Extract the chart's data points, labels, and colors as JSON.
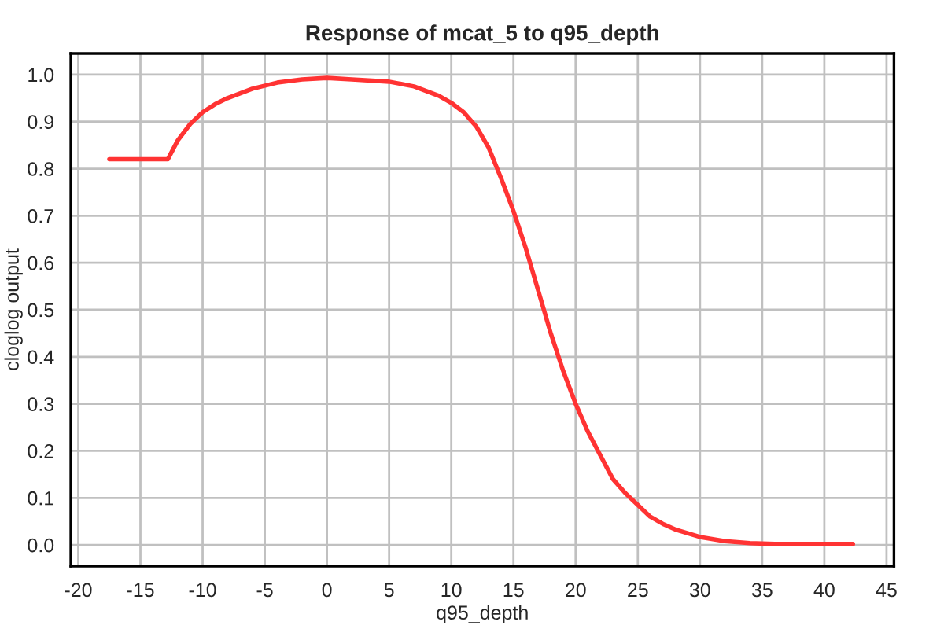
{
  "chart_data": {
    "type": "line",
    "title": "Response of mcat_5 to q95_depth",
    "xlabel": "q95_depth",
    "ylabel": "cloglog output",
    "x": [
      -17.5,
      -12.8,
      -12,
      -11,
      -10,
      -9,
      -8,
      -6,
      -4,
      -2,
      0,
      2,
      5,
      7,
      9,
      10,
      11,
      12,
      13,
      14,
      15,
      16,
      17,
      18,
      19,
      20,
      21,
      22,
      23,
      24,
      25,
      26,
      27,
      28,
      30,
      32,
      34,
      36,
      42.3
    ],
    "series": [
      {
        "color": "#ff3333",
        "values": [
          0.82,
          0.82,
          0.86,
          0.895,
          0.92,
          0.937,
          0.95,
          0.97,
          0.983,
          0.99,
          0.993,
          0.99,
          0.985,
          0.975,
          0.955,
          0.94,
          0.92,
          0.89,
          0.845,
          0.78,
          0.71,
          0.63,
          0.54,
          0.45,
          0.37,
          0.3,
          0.24,
          0.19,
          0.14,
          0.11,
          0.085,
          0.06,
          0.045,
          0.033,
          0.017,
          0.008,
          0.004,
          0.002,
          0.002
        ]
      }
    ],
    "xlim": [
      -20.6,
      45.6
    ],
    "ylim": [
      -0.045,
      1.045
    ],
    "xticks": [
      -20,
      -15,
      -10,
      -5,
      0,
      5,
      10,
      15,
      20,
      25,
      30,
      35,
      40,
      45
    ],
    "yticks": [
      {
        "value": 0,
        "label": "0.0"
      },
      0.1,
      0.2,
      0.3,
      0.4,
      0.5,
      0.6,
      0.7,
      0.8,
      0.9,
      {
        "value": 1,
        "label": "1.0"
      }
    ],
    "grid": true,
    "marker": "none",
    "line_style": "solid"
  }
}
